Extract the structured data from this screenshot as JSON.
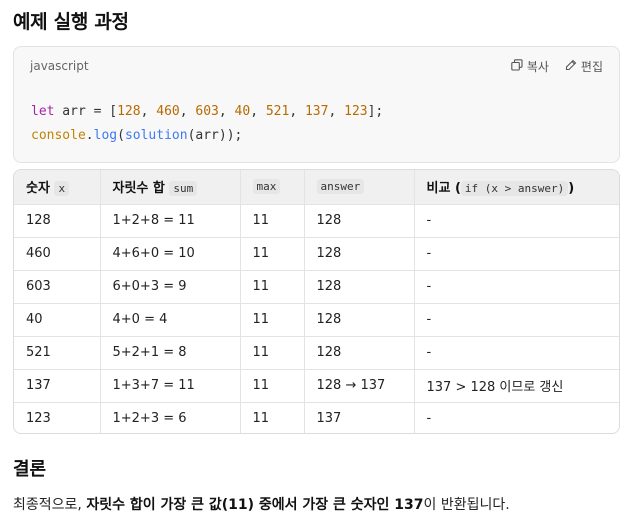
{
  "heading": "예제 실행 과정",
  "code": {
    "language": "javascript",
    "copy_label": "복사",
    "edit_label": "편집",
    "line1": {
      "kw": "let",
      "rest1": " arr = [",
      "nums": [
        "128",
        "460",
        "603",
        "40",
        "521",
        "137",
        "123"
      ],
      "end": "];"
    },
    "line2": {
      "obj": "console",
      "dot": ".",
      "fn1": "log",
      "open": "(",
      "fn2": "solution",
      "rest": "(arr));"
    }
  },
  "table": {
    "headers": [
      {
        "text": "숫자",
        "code": "x"
      },
      {
        "text": "자릿수 합",
        "code": "sum"
      },
      {
        "text": "",
        "code": "max"
      },
      {
        "text": "",
        "code": "answer"
      },
      {
        "text": "비교",
        "paren_open": "(",
        "code": "if (x > answer)",
        "paren_close": ")"
      }
    ],
    "rows": [
      [
        "128",
        "1+2+8 = 11",
        "11",
        "128",
        "-"
      ],
      [
        "460",
        "4+6+0 = 10",
        "11",
        "128",
        "-"
      ],
      [
        "603",
        "6+0+3 = 9",
        "11",
        "128",
        "-"
      ],
      [
        "40",
        "4+0 = 4",
        "11",
        "128",
        "-"
      ],
      [
        "521",
        "5+2+1 = 8",
        "11",
        "128",
        "-"
      ],
      [
        "137",
        "1+3+7 = 11",
        "11",
        "128 → 137",
        "137 > 128 이므로 갱신"
      ],
      [
        "123",
        "1+2+3 = 6",
        "11",
        "137",
        "-"
      ]
    ]
  },
  "conclusion_heading": "결론",
  "conclusion": {
    "p1": "최종적으로, ",
    "b1": "자릿수 합이 가장 큰 값(11) 중에서 가장 큰 숫자인 137",
    "p2": "이 반환됩니다."
  }
}
